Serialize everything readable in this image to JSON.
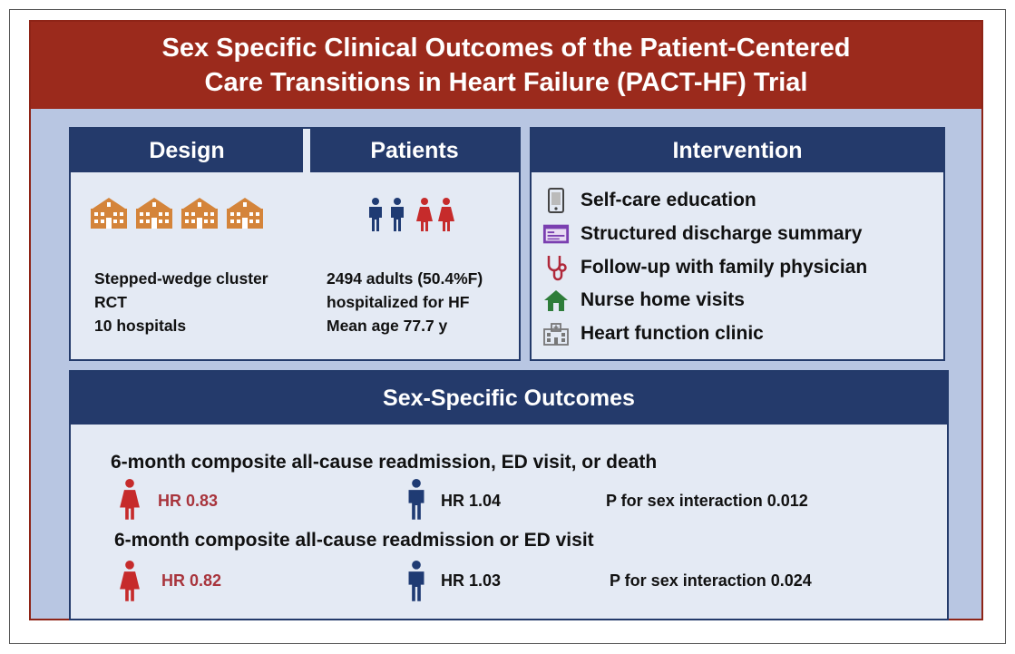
{
  "title": {
    "line1": "Sex Specific Clinical Outcomes of the Patient-Centered",
    "line2": "Care Transitions in Heart Failure (PACT-HF) Trial"
  },
  "design": {
    "header": "Design",
    "icon": "hospital-icon",
    "lines": [
      "Stepped-wedge cluster",
      "RCT",
      "10 hospitals"
    ]
  },
  "patients": {
    "header": "Patients",
    "icons": [
      "man-icon",
      "woman-icon"
    ],
    "lines": [
      "2494 adults (50.4%F)",
      "hospitalized for HF",
      "Mean age 77.7 y"
    ]
  },
  "intervention": {
    "header": "Intervention",
    "items": [
      {
        "icon": "tablet-icon",
        "label": "Self-care education"
      },
      {
        "icon": "document-icon",
        "label": "Structured discharge summary"
      },
      {
        "icon": "stethoscope-icon",
        "label": "Follow-up with family physician"
      },
      {
        "icon": "house-icon",
        "label": "Nurse home visits"
      },
      {
        "icon": "clinic-icon",
        "label": "Heart function clinic"
      }
    ]
  },
  "outcomes": {
    "header": "Sex-Specific Outcomes",
    "rows": [
      {
        "heading": "6-month composite all-cause readmission, ED visit, or death",
        "female_hr": "HR 0.83",
        "male_hr": "HR 1.04",
        "p_text": "P for sex interaction 0.012"
      },
      {
        "heading": "6-month composite all-cause readmission or ED visit",
        "female_hr": "HR 0.82",
        "male_hr": "HR 1.03",
        "p_text": "P for sex interaction 0.024"
      }
    ]
  },
  "colors": {
    "title_bg": "#9b2a1c",
    "header_bg": "#243a6b",
    "panel_bg": "#e4eaf4",
    "frame_bg": "#b8c6e2",
    "female": "#c62b2b",
    "male": "#1f3b73",
    "hospital": "#d4843a"
  }
}
